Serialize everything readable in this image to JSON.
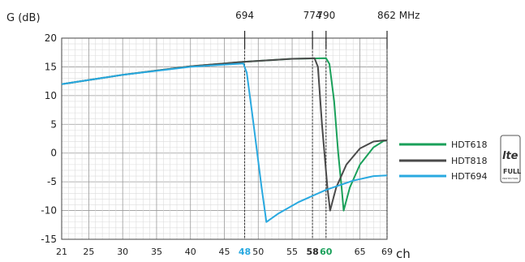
{
  "chart_data": {
    "type": "line",
    "ylabel": "G (dB)",
    "xlabel": "ch",
    "ylim": [
      -15,
      20
    ],
    "xlim": [
      21,
      69
    ],
    "grid": true,
    "legend_position": "right",
    "y_ticks": [
      "20",
      "15",
      "10",
      "5",
      "0",
      "-5",
      "-10",
      "-15"
    ],
    "y_tick_values": [
      20,
      15,
      10,
      5,
      0,
      -5,
      -10,
      -15
    ],
    "x_ticks": [
      {
        "ch": 21,
        "label": "21"
      },
      {
        "ch": 25,
        "label": "25"
      },
      {
        "ch": 30,
        "label": "30"
      },
      {
        "ch": 35,
        "label": "35"
      },
      {
        "ch": 40,
        "label": "40"
      },
      {
        "ch": 45,
        "label": "45"
      },
      {
        "ch": 48,
        "label": "48",
        "highlight": "#29a9e0"
      },
      {
        "ch": 50,
        "label": "50"
      },
      {
        "ch": 55,
        "label": "55"
      },
      {
        "ch": 58,
        "label": "58",
        "highlight": "#2a2a2a"
      },
      {
        "ch": 60,
        "label": "60",
        "highlight": "#1aa05a"
      },
      {
        "ch": 65,
        "label": "65"
      },
      {
        "ch": 69,
        "label": "69"
      }
    ],
    "freq_markers": [
      {
        "ch": 48,
        "label": "694"
      },
      {
        "ch": 58,
        "label": "774"
      },
      {
        "ch": 60,
        "label": "790"
      },
      {
        "ch": 69,
        "label": "862 MHz"
      }
    ],
    "series": [
      {
        "name": "HDT618",
        "color": "#1aa05a",
        "points": [
          [
            21,
            12
          ],
          [
            30,
            13.6
          ],
          [
            40,
            15.1
          ],
          [
            48,
            15.9
          ],
          [
            55,
            16.4
          ],
          [
            60,
            16.5
          ],
          [
            60.5,
            15.5
          ],
          [
            61.2,
            9
          ],
          [
            61.8,
            0
          ],
          [
            62.3,
            -6
          ],
          [
            62.6,
            -10
          ],
          [
            63.5,
            -6
          ],
          [
            65,
            -2
          ],
          [
            67,
            1
          ],
          [
            68.5,
            2.1
          ],
          [
            69,
            2.2
          ]
        ]
      },
      {
        "name": "HDT818",
        "color": "#4a4a4a",
        "points": [
          [
            21,
            12
          ],
          [
            30,
            13.6
          ],
          [
            40,
            15.1
          ],
          [
            48,
            15.9
          ],
          [
            55,
            16.4
          ],
          [
            58.3,
            16.5
          ],
          [
            58.8,
            15
          ],
          [
            59.4,
            5
          ],
          [
            60.2,
            -6
          ],
          [
            60.6,
            -10
          ],
          [
            61.5,
            -6
          ],
          [
            63,
            -2
          ],
          [
            65,
            0.8
          ],
          [
            67,
            2
          ],
          [
            68.5,
            2.2
          ],
          [
            69,
            2.2
          ]
        ]
      },
      {
        "name": "HDT694",
        "color": "#29a9e0",
        "points": [
          [
            21,
            12
          ],
          [
            30,
            13.6
          ],
          [
            40,
            15
          ],
          [
            47.8,
            15.6
          ],
          [
            48.3,
            14
          ],
          [
            49.2,
            6
          ],
          [
            50.5,
            -6
          ],
          [
            51.2,
            -12
          ],
          [
            53,
            -10.5
          ],
          [
            56,
            -8.5
          ],
          [
            60,
            -6.4
          ],
          [
            64,
            -4.8
          ],
          [
            67,
            -4
          ],
          [
            69,
            -3.9
          ]
        ]
      }
    ]
  },
  "badge": {
    "top_text": "lte",
    "bottom_text": "FULL",
    "small_text": "PROTECTION"
  }
}
